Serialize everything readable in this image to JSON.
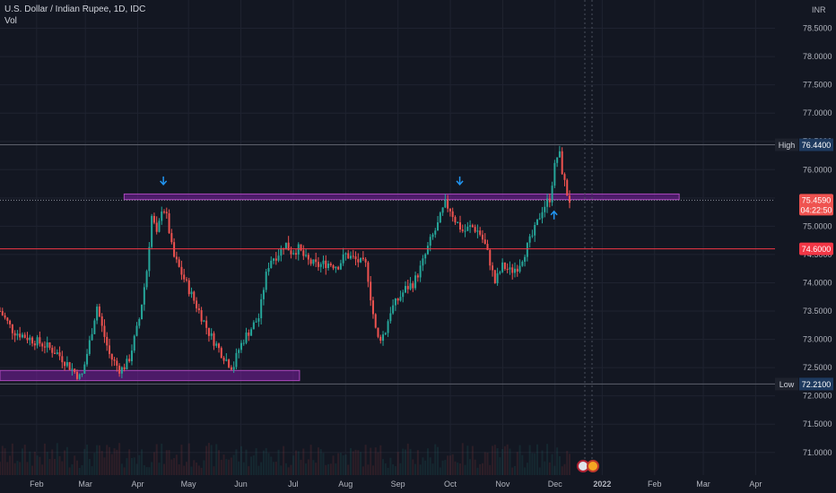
{
  "header": {
    "title": "U.S. Dollar / Indian Rupee, 1D, IDC",
    "indicator": "Vol"
  },
  "colors": {
    "background": "#131722",
    "grid": "#1f2330",
    "up": "#26a69a",
    "down": "#ef5350",
    "zone": "#7b1fa2",
    "arrow": "#2196f3",
    "price_line": "#f23645"
  },
  "chart_data": {
    "type": "candlestick",
    "currency_label": "INR",
    "y_ticks": [
      "71.0000",
      "71.5000",
      "72.0000",
      "72.5000",
      "73.0000",
      "73.5000",
      "74.0000",
      "74.5000",
      "75.0000",
      "75.5000",
      "76.0000",
      "76.5000",
      "77.0000",
      "77.5000",
      "78.0000",
      "78.5000"
    ],
    "x_ticks": [
      "Feb",
      "Mar",
      "Apr",
      "May",
      "Jun",
      "Jul",
      "Aug",
      "Sep",
      "Oct",
      "Nov",
      "Dec",
      "2022",
      "Feb",
      "Mar",
      "Apr"
    ],
    "x_tick_pos": [
      1.2,
      2.13,
      3.13,
      4.1,
      5.1,
      6.1,
      7.1,
      8.1,
      9.1,
      10.1,
      11.1,
      12.0,
      13.0,
      13.93,
      14.93
    ],
    "ylim": [
      70.6,
      79.0
    ],
    "xlim": [
      0.5,
      15.3
    ],
    "high": {
      "label": "High",
      "value": "76.4400"
    },
    "low": {
      "label": "Low",
      "value": "72.2100"
    },
    "last_price": {
      "value": "75.4590",
      "countdown": "04:22:50"
    },
    "alert_line": {
      "value": "74.6000"
    },
    "zones": [
      {
        "x0": 0.5,
        "x1": 6.22,
        "y0": 72.27,
        "y1": 72.45
      },
      {
        "x0": 2.87,
        "x1": 13.47,
        "y0": 75.47,
        "y1": 75.57
      }
    ],
    "arrows": [
      {
        "x": 3.62,
        "y": 75.8,
        "dir": "down"
      },
      {
        "x": 9.28,
        "y": 75.8,
        "dir": "down"
      },
      {
        "x": 11.08,
        "y": 75.2,
        "dir": "up"
      }
    ],
    "anchors": [
      [
        0.5,
        73.5
      ],
      [
        0.75,
        73.15
      ],
      [
        1.1,
        73.0
      ],
      [
        1.35,
        72.9
      ],
      [
        1.6,
        72.75
      ],
      [
        1.85,
        72.5
      ],
      [
        2.05,
        72.3
      ],
      [
        2.2,
        72.9
      ],
      [
        2.35,
        73.6
      ],
      [
        2.45,
        73.2
      ],
      [
        2.6,
        72.7
      ],
      [
        2.8,
        72.45
      ],
      [
        2.95,
        72.6
      ],
      [
        3.15,
        73.3
      ],
      [
        3.3,
        74.2
      ],
      [
        3.4,
        75.2
      ],
      [
        3.5,
        74.8
      ],
      [
        3.6,
        75.4
      ],
      [
        3.7,
        75.1
      ],
      [
        3.8,
        74.5
      ],
      [
        3.95,
        74.2
      ],
      [
        4.05,
        74.0
      ],
      [
        4.2,
        73.7
      ],
      [
        4.35,
        73.4
      ],
      [
        4.5,
        73.1
      ],
      [
        4.7,
        72.8
      ],
      [
        4.85,
        72.6
      ],
      [
        4.95,
        72.5
      ],
      [
        5.05,
        72.8
      ],
      [
        5.15,
        73.0
      ],
      [
        5.3,
        73.2
      ],
      [
        5.45,
        73.4
      ],
      [
        5.55,
        74.0
      ],
      [
        5.65,
        74.4
      ],
      [
        5.8,
        74.5
      ],
      [
        5.95,
        74.7
      ],
      [
        6.05,
        74.55
      ],
      [
        6.2,
        74.6
      ],
      [
        6.35,
        74.4
      ],
      [
        6.55,
        74.3
      ],
      [
        6.75,
        74.35
      ],
      [
        6.95,
        74.3
      ],
      [
        7.1,
        74.5
      ],
      [
        7.3,
        74.4
      ],
      [
        7.5,
        74.3
      ],
      [
        7.6,
        73.6
      ],
      [
        7.7,
        73.0
      ],
      [
        7.85,
        73.1
      ],
      [
        7.95,
        73.5
      ],
      [
        8.1,
        73.7
      ],
      [
        8.25,
        73.9
      ],
      [
        8.4,
        74.0
      ],
      [
        8.55,
        74.3
      ],
      [
        8.7,
        74.7
      ],
      [
        8.85,
        75.0
      ],
      [
        9.0,
        75.4
      ],
      [
        9.1,
        75.3
      ],
      [
        9.2,
        75.1
      ],
      [
        9.35,
        74.9
      ],
      [
        9.5,
        75.0
      ],
      [
        9.65,
        74.9
      ],
      [
        9.75,
        74.7
      ],
      [
        9.85,
        74.4
      ],
      [
        9.95,
        74.0
      ],
      [
        10.1,
        74.3
      ],
      [
        10.25,
        74.2
      ],
      [
        10.4,
        74.3
      ],
      [
        10.55,
        74.6
      ],
      [
        10.7,
        74.9
      ],
      [
        10.85,
        75.3
      ],
      [
        11.0,
        75.5
      ],
      [
        11.08,
        76.0
      ],
      [
        11.17,
        76.35
      ],
      [
        11.25,
        75.9
      ],
      [
        11.32,
        75.6
      ],
      [
        11.38,
        75.45
      ]
    ],
    "volume_relative": "shown as faint bars, not labeled"
  }
}
